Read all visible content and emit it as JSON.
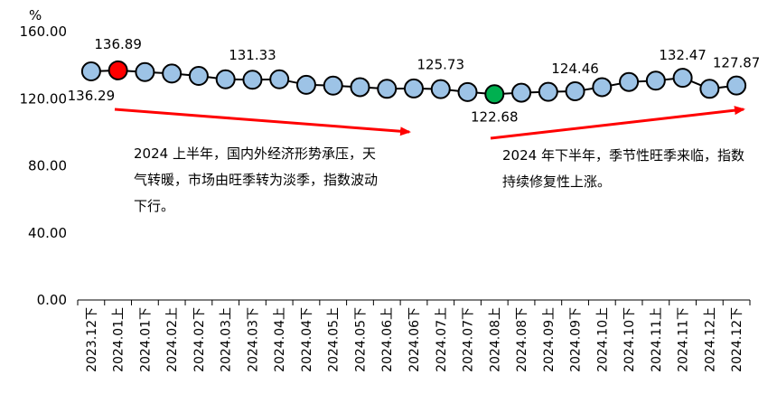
{
  "chart_data": {
    "type": "line",
    "unit": "%",
    "ylim": [
      0,
      160
    ],
    "yticks": [
      "0.00",
      "40.00",
      "80.00",
      "120.00",
      "160.00"
    ],
    "categories": [
      "2023.12下",
      "2024.01上",
      "2024.01下",
      "2024.02上",
      "2024.02下",
      "2024.03上",
      "2024.03下",
      "2024.04上",
      "2024.04下",
      "2024.05上",
      "2024.05下",
      "2024.06上",
      "2024.06下",
      "2024.07上",
      "2024.07下",
      "2024.08上",
      "2024.08下",
      "2024.09上",
      "2024.09下",
      "2024.10上",
      "2024.10下",
      "2024.11上",
      "2024.11下",
      "2024.12上",
      "2024.12下"
    ],
    "values": [
      136.29,
      136.89,
      135.9,
      135.0,
      133.6,
      131.6,
      131.33,
      131.6,
      128.3,
      127.8,
      126.9,
      125.9,
      126.1,
      125.73,
      124.0,
      122.68,
      123.6,
      124.1,
      124.46,
      126.9,
      130.0,
      130.8,
      132.47,
      125.9,
      127.87
    ],
    "data_labels": [
      {
        "index": 0,
        "text": "136.29"
      },
      {
        "index": 1,
        "text": "136.89"
      },
      {
        "index": 6,
        "text": "131.33"
      },
      {
        "index": 13,
        "text": "125.73"
      },
      {
        "index": 15,
        "text": "122.68"
      },
      {
        "index": 18,
        "text": "124.46"
      },
      {
        "index": 22,
        "text": "132.47"
      },
      {
        "index": 24,
        "text": "127.87"
      }
    ],
    "highlight": {
      "max_index": 1,
      "min_index": 15
    },
    "colors": {
      "line": "#000000",
      "marker": "#9DC3E6",
      "marker_max": "#FF0000",
      "marker_min": "#00B050",
      "arrow": "#FF0000"
    },
    "annotations": [
      "2024 上半年，国内外经济形势承压，天气转暖，市场由旺季转为淡季，指数波动下行。",
      "2024 年下半年，季节性旺季来临，指数持续修复性上涨。"
    ]
  }
}
